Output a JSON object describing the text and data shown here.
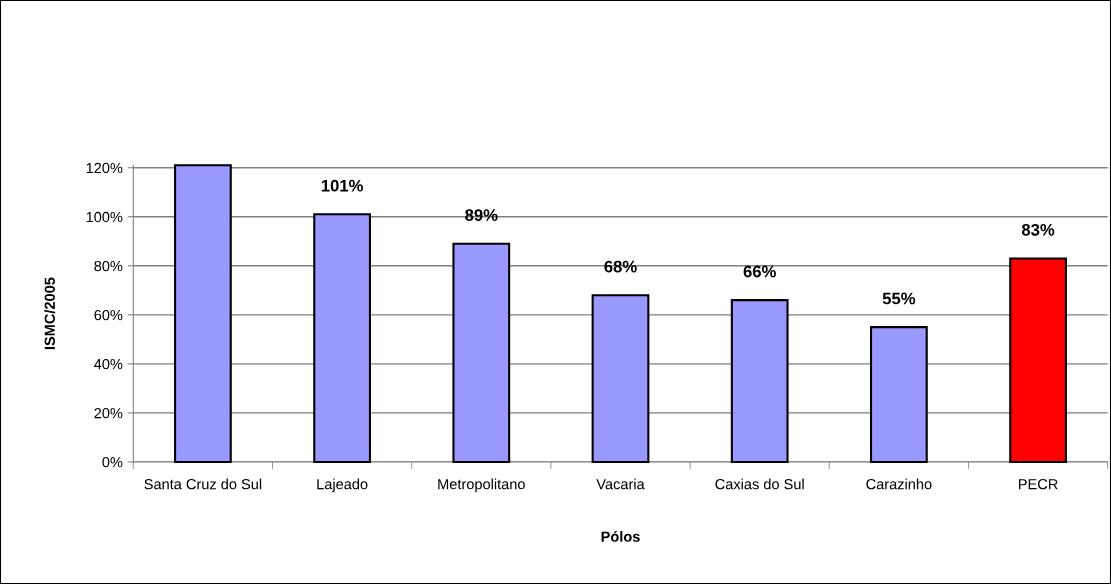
{
  "chart_data": {
    "type": "bar",
    "xlabel": "Pólos",
    "ylabel": "ISMC/2005",
    "categories": [
      "Santa Cruz do Sul",
      "Lajeado",
      "Metropolitano",
      "Vacaria",
      "Caxias do Sul",
      "Carazinho",
      "PECR"
    ],
    "values": [
      121,
      101,
      89,
      68,
      66,
      55,
      83
    ],
    "colors": [
      "#9999ff",
      "#9999ff",
      "#9999ff",
      "#9999ff",
      "#9999ff",
      "#9999ff",
      "#ff0000"
    ],
    "value_labels": [
      null,
      "101%",
      "89%",
      "68%",
      "66%",
      "55%",
      "83%"
    ],
    "ylim": [
      0,
      121
    ],
    "yticks": [
      {
        "value": 0,
        "label": "0%"
      },
      {
        "value": 20,
        "label": "20%"
      },
      {
        "value": 40,
        "label": "40%"
      },
      {
        "value": 60,
        "label": "60%"
      },
      {
        "value": 80,
        "label": "80%"
      },
      {
        "value": 100,
        "label": "100%"
      },
      {
        "value": 120,
        "label": "120%"
      }
    ],
    "grid": "y",
    "legend": false
  }
}
